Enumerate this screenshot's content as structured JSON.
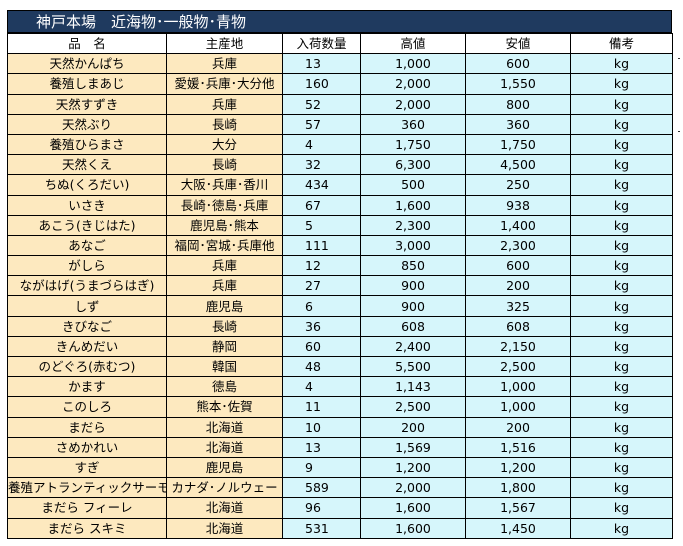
{
  "title": "神戸本場　近海物･一般物･青物",
  "headers": {
    "name": "品　名",
    "origin": "主産地",
    "qty": "入荷数量",
    "high": "高値",
    "low": "安値",
    "note": "備考"
  },
  "rows": [
    {
      "name": "天然かんぱち",
      "origin": "兵庫",
      "qty": "13",
      "high": "1,000",
      "low": "600",
      "unit": "kg"
    },
    {
      "name": "養殖しまあじ",
      "origin": "愛媛･兵庫･大分他",
      "qty": "160",
      "high": "2,000",
      "low": "1,550",
      "unit": "kg"
    },
    {
      "name": "天然すずき",
      "origin": "兵庫",
      "qty": "52",
      "high": "2,000",
      "low": "800",
      "unit": "kg"
    },
    {
      "name": "天然ぶり",
      "origin": "長崎",
      "qty": "57",
      "high": "360",
      "low": "360",
      "unit": "kg"
    },
    {
      "name": "養殖ひらまさ",
      "origin": "大分",
      "qty": "4",
      "high": "1,750",
      "low": "1,750",
      "unit": "kg"
    },
    {
      "name": "天然くえ",
      "origin": "長崎",
      "qty": "32",
      "high": "6,300",
      "low": "4,500",
      "unit": "kg"
    },
    {
      "name": "ちぬ(くろだい)",
      "origin": "大阪･兵庫･香川",
      "qty": "434",
      "high": "500",
      "low": "250",
      "unit": "kg"
    },
    {
      "name": "いさき",
      "origin": "長崎･徳島･兵庫",
      "qty": "67",
      "high": "1,600",
      "low": "938",
      "unit": "kg"
    },
    {
      "name": "あこう(きじはた)",
      "origin": "鹿児島･熊本",
      "qty": "5",
      "high": "2,300",
      "low": "1,400",
      "unit": "kg"
    },
    {
      "name": "あなご",
      "origin": "福岡･宮城･兵庫他",
      "qty": "111",
      "high": "3,000",
      "low": "2,300",
      "unit": "kg"
    },
    {
      "name": "がしら",
      "origin": "兵庫",
      "qty": "12",
      "high": "850",
      "low": "600",
      "unit": "kg"
    },
    {
      "name": "ながはげ(うまづらはぎ)",
      "origin": "兵庫",
      "qty": "27",
      "high": "900",
      "low": "200",
      "unit": "kg"
    },
    {
      "name": "しず",
      "origin": "鹿児島",
      "qty": "6",
      "high": "900",
      "low": "325",
      "unit": "kg"
    },
    {
      "name": "きびなご",
      "origin": "長崎",
      "qty": "36",
      "high": "608",
      "low": "608",
      "unit": "kg"
    },
    {
      "name": "きんめだい",
      "origin": "静岡",
      "qty": "60",
      "high": "2,400",
      "low": "2,150",
      "unit": "kg"
    },
    {
      "name": "のどぐろ(赤むつ)",
      "origin": "韓国",
      "qty": "48",
      "high": "5,500",
      "low": "2,500",
      "unit": "kg"
    },
    {
      "name": "かます",
      "origin": "徳島",
      "qty": "4",
      "high": "1,143",
      "low": "1,000",
      "unit": "kg"
    },
    {
      "name": "このしろ",
      "origin": "熊本･佐賀",
      "qty": "11",
      "high": "2,500",
      "low": "1,000",
      "unit": "kg"
    },
    {
      "name": "まだら",
      "origin": "北海道",
      "qty": "10",
      "high": "200",
      "low": "200",
      "unit": "kg"
    },
    {
      "name": "さめかれい",
      "origin": "北海道",
      "qty": "13",
      "high": "1,569",
      "low": "1,516",
      "unit": "kg"
    },
    {
      "name": "すぎ",
      "origin": "鹿児島",
      "qty": "9",
      "high": "1,200",
      "low": "1,200",
      "unit": "kg"
    },
    {
      "name": "養殖アトランティックサーモン",
      "origin": "カナダ･ノルウェー",
      "qty": "589",
      "high": "2,000",
      "low": "1,800",
      "unit": "kg"
    },
    {
      "name": "まだら フィーレ",
      "origin": "北海道",
      "qty": "96",
      "high": "1,600",
      "low": "1,567",
      "unit": "kg"
    },
    {
      "name": "まだら スキミ",
      "origin": "北海道",
      "qty": "531",
      "high": "1,600",
      "low": "1,450",
      "unit": "kg"
    }
  ]
}
